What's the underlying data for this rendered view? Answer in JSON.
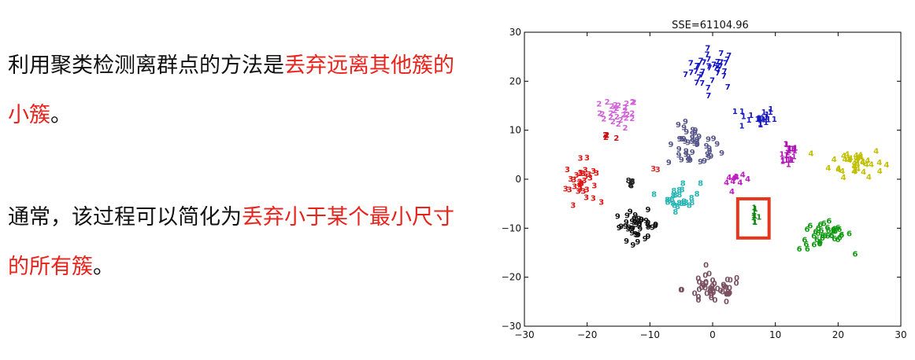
{
  "paragraph1": {
    "black": "利用聚类检测离群点的方法是",
    "red": "丢弃远离其他簇的小簇",
    "end": "。"
  },
  "paragraph2": {
    "black": "通常，该过程可以简化为",
    "red": "丢弃小于某个最小尺寸的所有簇",
    "end": "。"
  },
  "chart_data": {
    "type": "scatter",
    "title": "SSE=61104.96",
    "xlabel": "",
    "ylabel": "",
    "xlim": [
      -30,
      30
    ],
    "ylim": [
      -30,
      30
    ],
    "xticks": [
      -30,
      -20,
      -10,
      0,
      10,
      20,
      30
    ],
    "yticks": [
      -30,
      -20,
      -10,
      0,
      10,
      20,
      30
    ],
    "grid": false,
    "marker": "digit glyphs",
    "highlight_box": {
      "x": [
        4,
        9
      ],
      "y": [
        -12,
        -4
      ],
      "color": "#e8351c"
    },
    "clusters": [
      {
        "label": "7",
        "color": "#1010c8",
        "center": [
          0,
          22
        ],
        "spread": [
          3.5,
          3.5
        ],
        "count": 36
      },
      {
        "label": "2",
        "color": "#d060d8",
        "center": [
          -15,
          13
        ],
        "spread": [
          2.5,
          2.5
        ],
        "count": 28
      },
      {
        "label": "9",
        "color": "#545488",
        "center": [
          -3,
          6
        ],
        "spread": [
          3.5,
          3.5
        ],
        "count": 45
      },
      {
        "label": "1",
        "color": "#1818c0",
        "center": [
          7,
          12
        ],
        "spread": [
          2.5,
          2.0
        ],
        "count": 22
      },
      {
        "label": "1",
        "color": "#b012b8",
        "center": [
          12,
          5
        ],
        "spread": [
          1.5,
          2.5
        ],
        "count": 20
      },
      {
        "label": "4",
        "color": "#c0c000",
        "center": [
          23,
          3
        ],
        "spread": [
          3.5,
          2.5
        ],
        "count": 38
      },
      {
        "label": "3",
        "color": "#e01414",
        "center": [
          -21,
          -1
        ],
        "spread": [
          2.0,
          3.5
        ],
        "count": 34
      },
      {
        "label": "2",
        "color": "#cc1010",
        "center": [
          -17,
          8
        ],
        "spread": [
          1.0,
          1.0
        ],
        "count": 5
      },
      {
        "label": "8",
        "color": "#26b4b4",
        "center": [
          -5,
          -4
        ],
        "spread": [
          2.5,
          2.5
        ],
        "count": 26
      },
      {
        "label": "4",
        "color": "#c018c0",
        "center": [
          4,
          -1
        ],
        "spread": [
          1.5,
          1.0
        ],
        "count": 10
      },
      {
        "label": "9",
        "color": "#111111",
        "center": [
          -12,
          -10
        ],
        "spread": [
          3.0,
          2.5
        ],
        "count": 40
      },
      {
        "label": "1",
        "color": "#118811",
        "center": [
          6.5,
          -8
        ],
        "spread": [
          0.8,
          1.2
        ],
        "count": 9
      },
      {
        "label": "6",
        "color": "#119a11",
        "center": [
          18,
          -12
        ],
        "spread": [
          3.5,
          2.5
        ],
        "count": 40
      },
      {
        "label": "0",
        "color": "#7a5060",
        "center": [
          0,
          -23
        ],
        "spread": [
          4.0,
          2.5
        ],
        "count": 48
      },
      {
        "label": "8",
        "color": "#222222",
        "center": [
          -13,
          -1.5
        ],
        "spread": [
          0.5,
          0.8
        ],
        "count": 5
      },
      {
        "label": "3",
        "color": "#d23030",
        "center": [
          -9,
          1.5
        ],
        "spread": [
          0.5,
          0.5
        ],
        "count": 2
      }
    ]
  }
}
